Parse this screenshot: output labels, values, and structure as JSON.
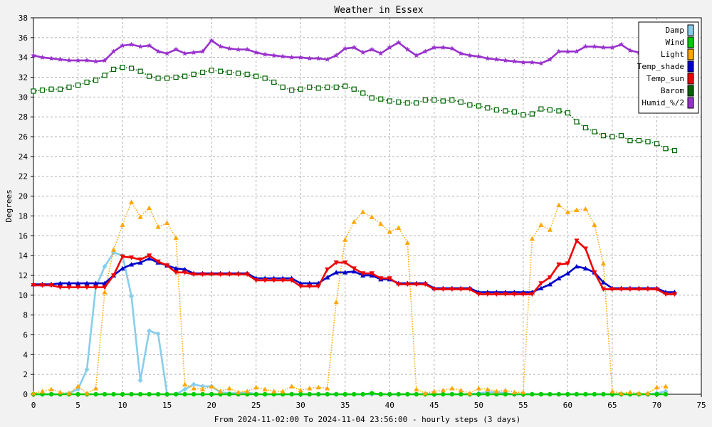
{
  "chart_data": {
    "type": "line",
    "title": "Weather in Essex",
    "xlabel": "From 2024-11-02:00 To 2024-11-04 23:56:00 - hourly steps (3 days)",
    "ylabel": "Degrees",
    "xlim": [
      0,
      75
    ],
    "ylim": [
      0,
      38
    ],
    "x_ticks": [
      0,
      5,
      10,
      15,
      20,
      25,
      30,
      35,
      40,
      45,
      50,
      55,
      60,
      65,
      70,
      75
    ],
    "y_ticks": [
      0,
      2,
      4,
      6,
      8,
      10,
      12,
      14,
      16,
      18,
      20,
      22,
      24,
      26,
      28,
      30,
      32,
      34,
      36,
      38
    ],
    "grid": true,
    "legend_position": "top-right",
    "background_color": "#ffffff",
    "page_color": "#f2f2f2",
    "series": [
      {
        "name": "Damp",
        "color": "#87ceeb",
        "marker": "diamond",
        "line_style": "solid",
        "values": [
          0,
          0,
          0,
          0,
          0.1,
          0.5,
          2.5,
          10.8,
          12.9,
          14.3,
          14.0,
          9.9,
          1.4,
          6.4,
          6.1,
          0,
          0,
          0.5,
          1.0,
          0.8,
          0.8,
          0.2,
          0.1,
          0.1,
          0.2,
          0,
          0,
          0,
          0,
          0,
          0,
          0,
          0,
          0,
          0,
          0,
          0,
          0,
          0,
          0,
          0,
          0,
          0,
          0,
          0,
          0,
          0,
          0,
          0,
          0,
          0.1,
          0.2,
          0.2,
          0.1,
          0,
          0,
          0,
          0,
          0,
          0,
          0,
          0,
          0,
          0,
          0,
          0,
          0,
          0,
          0,
          0,
          0.1,
          0.3
        ]
      },
      {
        "name": "Wind",
        "color": "#00cc00",
        "marker": "circle",
        "line_style": "solid",
        "values": [
          0,
          0,
          0,
          0,
          0,
          0,
          0,
          0,
          0,
          0,
          0,
          0,
          0,
          0,
          0,
          0,
          0,
          0,
          0,
          0,
          0,
          0,
          0,
          0,
          0,
          0,
          0,
          0,
          0,
          0,
          0,
          0,
          0,
          0,
          0,
          0,
          0,
          0,
          0.1,
          0,
          0,
          0,
          0,
          0,
          0,
          0,
          0,
          0,
          0,
          0,
          0,
          0,
          0,
          0,
          0,
          0,
          0,
          0,
          0,
          0,
          0,
          0,
          0,
          0,
          0,
          0,
          0,
          0,
          0,
          0,
          0,
          0
        ]
      },
      {
        "name": "Light",
        "color": "#ffa500",
        "marker": "triangle-up",
        "line_style": "dotted",
        "values": [
          0.1,
          0.3,
          0.5,
          0.2,
          0.1,
          0.8,
          0.1,
          0.6,
          10.3,
          14.6,
          17.1,
          19.4,
          17.9,
          18.8,
          16.9,
          17.3,
          15.8,
          1.0,
          0.6,
          0.5,
          0.8,
          0.3,
          0.6,
          0.2,
          0.3,
          0.7,
          0.5,
          0.3,
          0.3,
          0.8,
          0.4,
          0.6,
          0.7,
          0.6,
          9.3,
          15.6,
          17.4,
          18.4,
          17.9,
          17.2,
          16.4,
          16.8,
          15.3,
          0.5,
          0.1,
          0.3,
          0.4,
          0.6,
          0.4,
          0.1,
          0.6,
          0.5,
          0.3,
          0.4,
          0.2,
          0.2,
          15.7,
          17.1,
          16.6,
          19.1,
          18.4,
          18.6,
          18.7,
          17.1,
          13.2,
          0.3,
          0.1,
          0.2,
          0.1,
          0.1,
          0.7,
          0.8
        ]
      },
      {
        "name": "Temp_shade",
        "color": "#0000cc",
        "marker": "triangle-up",
        "line_style": "solid",
        "values": [
          11.1,
          11.1,
          11.1,
          11.2,
          11.2,
          11.2,
          11.2,
          11.2,
          11.2,
          12.0,
          12.7,
          13.1,
          13.3,
          13.7,
          13.3,
          13.0,
          12.7,
          12.6,
          12.2,
          12.2,
          12.2,
          12.2,
          12.2,
          12.2,
          12.2,
          11.7,
          11.7,
          11.7,
          11.7,
          11.7,
          11.2,
          11.2,
          11.2,
          11.8,
          12.3,
          12.3,
          12.4,
          12.0,
          12.0,
          11.6,
          11.6,
          11.2,
          11.2,
          11.2,
          11.2,
          10.7,
          10.7,
          10.7,
          10.7,
          10.7,
          10.3,
          10.3,
          10.3,
          10.3,
          10.3,
          10.3,
          10.3,
          10.7,
          11.1,
          11.7,
          12.2,
          12.9,
          12.7,
          12.3,
          11.3,
          10.7,
          10.7,
          10.7,
          10.7,
          10.7,
          10.7,
          10.3,
          10.3
        ]
      },
      {
        "name": "Temp_sun",
        "color": "#ee0000",
        "marker": "triangle-down",
        "line_style": "solid",
        "values": [
          11.0,
          11.0,
          11.0,
          10.8,
          10.8,
          10.8,
          10.8,
          10.8,
          10.8,
          12.0,
          13.9,
          13.8,
          13.6,
          14.0,
          13.4,
          13.0,
          12.3,
          12.3,
          12.1,
          12.1,
          12.1,
          12.1,
          12.1,
          12.1,
          12.1,
          11.5,
          11.5,
          11.5,
          11.5,
          11.5,
          10.9,
          10.9,
          10.9,
          12.6,
          13.3,
          13.3,
          12.7,
          12.2,
          12.2,
          11.7,
          11.7,
          11.1,
          11.1,
          11.1,
          11.1,
          10.6,
          10.6,
          10.6,
          10.6,
          10.6,
          10.1,
          10.1,
          10.1,
          10.1,
          10.1,
          10.1,
          10.1,
          11.2,
          11.8,
          13.1,
          13.2,
          15.5,
          14.7,
          12.3,
          10.6,
          10.6,
          10.6,
          10.6,
          10.6,
          10.6,
          10.6,
          10.1,
          10.1
        ]
      },
      {
        "name": "Barom",
        "color": "#006400",
        "marker": "square",
        "line_style": "dotted",
        "values": [
          30.6,
          30.7,
          30.8,
          30.8,
          31.0,
          31.2,
          31.5,
          31.7,
          32.2,
          32.8,
          33.0,
          32.9,
          32.6,
          32.1,
          31.9,
          31.9,
          32.0,
          32.1,
          32.3,
          32.5,
          32.7,
          32.6,
          32.5,
          32.4,
          32.3,
          32.1,
          31.9,
          31.5,
          31.0,
          30.7,
          30.8,
          31.0,
          30.9,
          31.0,
          31.0,
          31.1,
          30.8,
          30.4,
          29.9,
          29.8,
          29.6,
          29.5,
          29.4,
          29.4,
          29.7,
          29.7,
          29.6,
          29.7,
          29.5,
          29.2,
          29.1,
          28.9,
          28.7,
          28.6,
          28.5,
          28.2,
          28.3,
          28.8,
          28.7,
          28.6,
          28.4,
          27.5,
          26.9,
          26.5,
          26.1,
          26.0,
          26.1,
          25.6,
          25.6,
          25.5,
          25.3,
          24.8,
          24.6
        ]
      },
      {
        "name": "Humid_%/2",
        "color": "#9932cc",
        "marker": "star",
        "line_style": "solid",
        "values": [
          34.2,
          34.0,
          33.9,
          33.8,
          33.7,
          33.7,
          33.7,
          33.6,
          33.7,
          34.6,
          35.2,
          35.3,
          35.1,
          35.2,
          34.6,
          34.4,
          34.8,
          34.4,
          34.5,
          34.6,
          35.7,
          35.1,
          34.9,
          34.8,
          34.8,
          34.5,
          34.3,
          34.2,
          34.1,
          34.0,
          34.0,
          33.9,
          33.9,
          33.8,
          34.2,
          34.9,
          35.0,
          34.5,
          34.8,
          34.4,
          35.0,
          35.5,
          34.8,
          34.2,
          34.6,
          35.0,
          35.0,
          34.9,
          34.4,
          34.2,
          34.1,
          33.9,
          33.8,
          33.7,
          33.6,
          33.5,
          33.5,
          33.4,
          33.8,
          34.6,
          34.6,
          34.6,
          35.1,
          35.1,
          35.0,
          35.0,
          35.3,
          34.7,
          34.5,
          34.5,
          34.4,
          34.7,
          34.8
        ]
      }
    ]
  }
}
